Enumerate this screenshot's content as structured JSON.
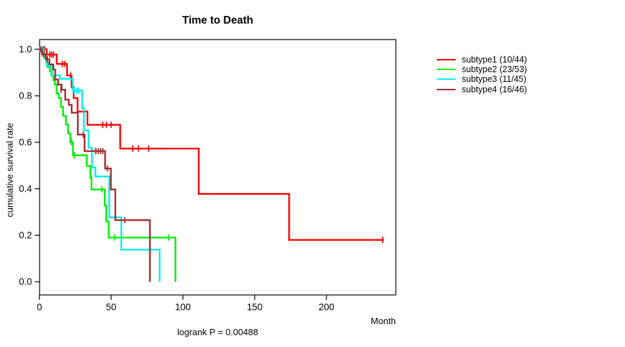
{
  "chart_data": {
    "type": "line",
    "variant": "kaplan-meier-step",
    "title": "Time to Death",
    "xlabel": "Month",
    "ylabel": "cumulative survival rate",
    "footnote": "logrank P = 0.00488",
    "grid": false,
    "legend_position": "right-outside",
    "xlim": [
      0,
      248
    ],
    "ylim": [
      0,
      1
    ],
    "x_ticks": [
      {
        "value": 0,
        "label": "0"
      },
      {
        "value": 50,
        "label": "50"
      },
      {
        "value": 100,
        "label": "100"
      },
      {
        "value": 150,
        "label": "150"
      },
      {
        "value": 200,
        "label": "200"
      }
    ],
    "y_ticks": [
      {
        "value": 0.0,
        "label": "0.0"
      },
      {
        "value": 0.2,
        "label": "0.2"
      },
      {
        "value": 0.4,
        "label": "0.4"
      },
      {
        "value": 0.6,
        "label": "0.6"
      },
      {
        "value": 0.8,
        "label": "0.8"
      },
      {
        "value": 1.0,
        "label": "1.0"
      }
    ],
    "series": [
      {
        "name": "subtype1 (10/44)",
        "color": "#ff0000",
        "steps": [
          [
            5.1,
            0.977
          ],
          [
            12.1,
            0.937
          ],
          [
            19.3,
            0.887
          ],
          [
            22.4,
            0.838
          ],
          [
            23.9,
            0.79
          ],
          [
            26.6,
            0.732
          ],
          [
            33.5,
            0.675
          ],
          [
            56.3,
            0.573
          ],
          [
            111,
            0.378
          ],
          [
            174,
            0.18
          ]
        ],
        "end": 240,
        "censors": [
          [
            1.5,
            1
          ],
          [
            2.5,
            1
          ],
          [
            3.5,
            1
          ],
          [
            7.3,
            0.977
          ],
          [
            8.5,
            0.977
          ],
          [
            9.8,
            0.977
          ],
          [
            16,
            0.937
          ],
          [
            17.7,
            0.937
          ],
          [
            21.8,
            0.887
          ],
          [
            44,
            0.675
          ],
          [
            46.7,
            0.675
          ],
          [
            50,
            0.675
          ],
          [
            65,
            0.573
          ],
          [
            69,
            0.573
          ],
          [
            76,
            0.573
          ],
          [
            239,
            0.18
          ]
        ]
      },
      {
        "name": "subtype2 (23/53)",
        "color": "#00ee00",
        "steps": [
          [
            2,
            0.981
          ],
          [
            3.7,
            0.962
          ],
          [
            4.8,
            0.943
          ],
          [
            5.6,
            0.924
          ],
          [
            7.3,
            0.905
          ],
          [
            8.4,
            0.886
          ],
          [
            9.7,
            0.867
          ],
          [
            10.8,
            0.848
          ],
          [
            12,
            0.81
          ],
          [
            13.5,
            0.79
          ],
          [
            15,
            0.752
          ],
          [
            16.5,
            0.714
          ],
          [
            18.5,
            0.676
          ],
          [
            20,
            0.638
          ],
          [
            21.5,
            0.6
          ],
          [
            23.4,
            0.544
          ],
          [
            33,
            0.498
          ],
          [
            35.5,
            0.447
          ],
          [
            36.3,
            0.397
          ],
          [
            45.5,
            0.328
          ],
          [
            46.6,
            0.259
          ],
          [
            48.3,
            0.19
          ],
          [
            94.8,
            0
          ]
        ],
        "end": 94.8,
        "censors": [
          [
            22.4,
            0.6
          ],
          [
            24.3,
            0.544
          ],
          [
            43.5,
            0.397
          ],
          [
            52.4,
            0.19
          ],
          [
            90,
            0.19
          ]
        ]
      },
      {
        "name": "subtype3 (11/45)",
        "color": "#00eeee",
        "steps": [
          [
            3,
            0.967
          ],
          [
            5,
            0.932
          ],
          [
            8.8,
            0.888
          ],
          [
            14.2,
            0.873
          ],
          [
            23.2,
            0.822
          ],
          [
            29.8,
            0.747
          ],
          [
            31,
            0.651
          ],
          [
            34.3,
            0.577
          ],
          [
            36.6,
            0.492
          ],
          [
            39,
            0.453
          ],
          [
            48.7,
            0.277
          ],
          [
            57.1,
            0.138
          ],
          [
            83.8,
            0
          ]
        ],
        "end": 83.8,
        "censors": [
          [
            0.5,
            1
          ],
          [
            1,
            1
          ],
          [
            1.5,
            1
          ],
          [
            2,
            1
          ],
          [
            6.5,
            0.932
          ],
          [
            24.2,
            0.822
          ],
          [
            25.8,
            0.822
          ],
          [
            27.4,
            0.822
          ]
        ]
      },
      {
        "name": "subtype4 (16/46)",
        "color": "#a52a2a",
        "steps": [
          [
            1.8,
            0.978
          ],
          [
            4.5,
            0.957
          ],
          [
            7,
            0.935
          ],
          [
            9.7,
            0.913
          ],
          [
            11,
            0.87
          ],
          [
            13,
            0.848
          ],
          [
            15.5,
            0.826
          ],
          [
            18,
            0.783
          ],
          [
            20.5,
            0.761
          ],
          [
            22.5,
            0.727
          ],
          [
            26.8,
            0.633
          ],
          [
            31.5,
            0.562
          ],
          [
            45.8,
            0.487
          ],
          [
            49.8,
            0.397
          ],
          [
            52.9,
            0.265
          ],
          [
            77,
            0
          ]
        ],
        "end": 77,
        "censors": [
          [
            1,
            1
          ],
          [
            2.8,
            0.978
          ],
          [
            5.5,
            0.957
          ],
          [
            15,
            0.826
          ],
          [
            30.5,
            0.633
          ],
          [
            39.3,
            0.562
          ],
          [
            40.9,
            0.562
          ],
          [
            42.5,
            0.562
          ],
          [
            44.2,
            0.562
          ],
          [
            47.4,
            0.487
          ],
          [
            59.5,
            0.265
          ]
        ]
      }
    ]
  }
}
